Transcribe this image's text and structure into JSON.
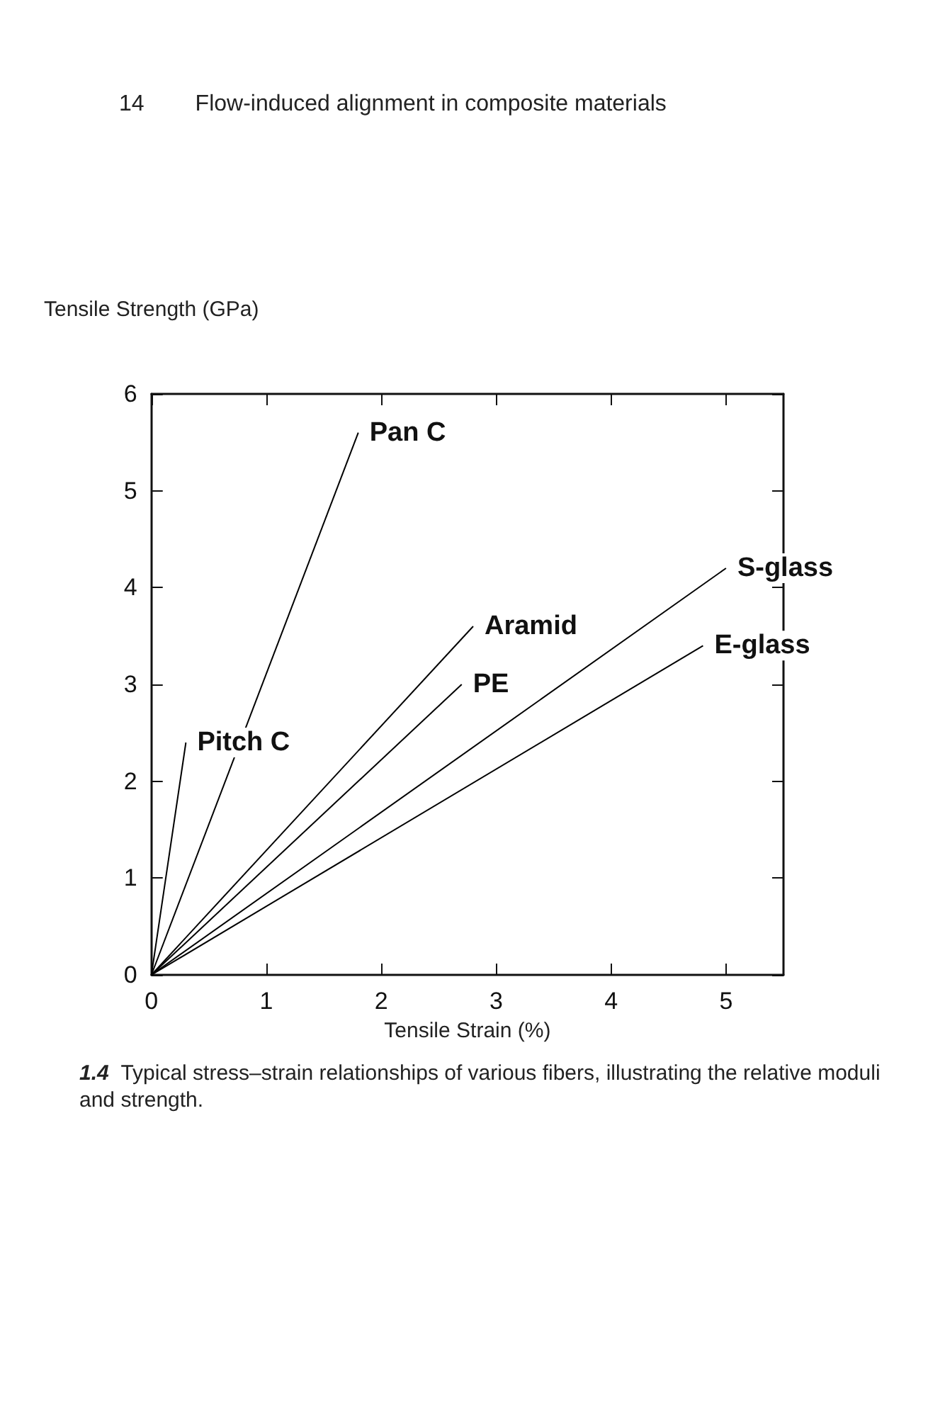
{
  "chart_data": {
    "type": "line",
    "title": "1.4 Typical stress–strain relationships of various fibers, illustrating the relative moduli and strength.",
    "annotations": [
      "14",
      "Flow-induced alignment in composite materials"
    ],
    "xlabel": "Tensile Strain (%)",
    "ylabel": "Tensile Strength (GPa)",
    "xlim": [
      0,
      5.5
    ],
    "xticks": [
      0,
      1,
      2,
      3,
      4,
      5
    ],
    "ylim": [
      0,
      6
    ],
    "yticks": [
      0,
      1,
      2,
      3,
      4,
      5,
      6
    ],
    "grid": false,
    "legend": false,
    "marker": "none",
    "line_style": "solid",
    "series": [
      {
        "name": "Pitch C",
        "color": "#000000",
        "x": [
          0,
          0.3
        ],
        "values": [
          0,
          2.4
        ]
      },
      {
        "name": "Pan C",
        "color": "#000000",
        "x": [
          0,
          1.8
        ],
        "values": [
          0,
          5.6
        ]
      },
      {
        "name": "Aramid",
        "color": "#000000",
        "x": [
          0,
          2.8
        ],
        "values": [
          0,
          3.6
        ]
      },
      {
        "name": "PE",
        "color": "#000000",
        "x": [
          0,
          2.7
        ],
        "values": [
          0,
          3.0
        ]
      },
      {
        "name": "S-glass",
        "color": "#000000",
        "x": [
          0,
          5.0
        ],
        "values": [
          0,
          4.2
        ]
      },
      {
        "name": "E-glass",
        "color": "#000000",
        "x": [
          0,
          4.8
        ],
        "values": [
          0,
          3.4
        ]
      }
    ]
  }
}
